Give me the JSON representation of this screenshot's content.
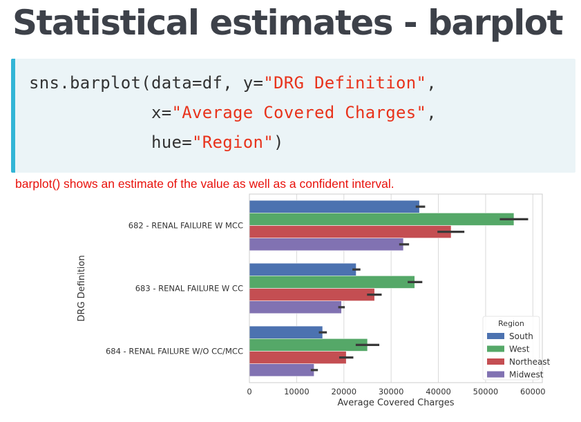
{
  "slide": {
    "title": "Statistical estimates - barplot",
    "caption": "barplot() shows an estimate of the value as well as a confident interval."
  },
  "code": {
    "line1_prefix": "sns.barplot(data=df, y=",
    "line1_string": "\"DRG Definition\"",
    "line1_suffix": ",",
    "line2_prefix": "            x=",
    "line2_string": "\"Average Covered Charges\"",
    "line2_suffix": ",",
    "line3_prefix": "            hue=",
    "line3_string": "\"Region\"",
    "line3_suffix": ")"
  },
  "chart_data": {
    "type": "bar",
    "orientation": "horizontal",
    "title": "",
    "xlabel": "Average Covered Charges",
    "ylabel": "DRG Definition",
    "xlim": [
      0,
      62000
    ],
    "xticks": [
      0,
      10000,
      20000,
      30000,
      40000,
      50000,
      60000
    ],
    "xtick_labels": [
      "0",
      "10000",
      "20000",
      "30000",
      "40000",
      "50000",
      "60000"
    ],
    "categories": [
      "682 - RENAL FAILURE W MCC",
      "683 - RENAL FAILURE W CC",
      "684 - RENAL FAILURE W/O CC/MCC"
    ],
    "grid": "vertical",
    "legend": {
      "title": "Region",
      "placement": "lower-right"
    },
    "series": [
      {
        "name": "South",
        "color": "#4c72b0",
        "values": [
          36000,
          22600,
          15500
        ],
        "ci": [
          [
            35200,
            37200
          ],
          [
            21800,
            23500
          ],
          [
            14700,
            16400
          ]
        ]
      },
      {
        "name": "West",
        "color": "#55a868",
        "values": [
          56000,
          35000,
          25000
        ],
        "ci": [
          [
            53000,
            59000
          ],
          [
            33500,
            36600
          ],
          [
            22500,
            27500
          ]
        ]
      },
      {
        "name": "Northeast",
        "color": "#c44e52",
        "values": [
          42700,
          26500,
          20500
        ],
        "ci": [
          [
            39800,
            45500
          ],
          [
            24900,
            28000
          ],
          [
            19000,
            22000
          ]
        ]
      },
      {
        "name": "Midwest",
        "color": "#8172b2",
        "values": [
          32600,
          19500,
          13700
        ],
        "ci": [
          [
            31700,
            33800
          ],
          [
            18800,
            20200
          ],
          [
            13000,
            14500
          ]
        ]
      }
    ]
  }
}
